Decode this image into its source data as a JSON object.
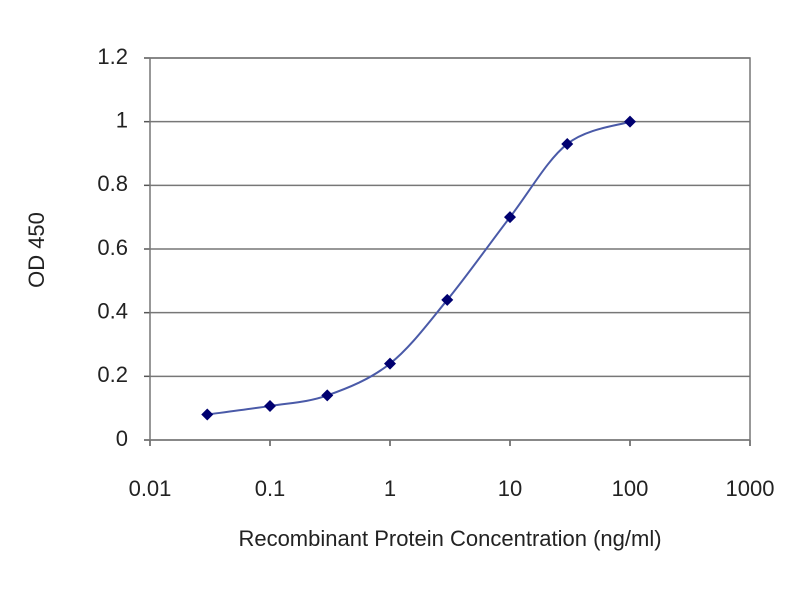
{
  "chart_data": {
    "type": "line",
    "x_label": "Recombinant Protein Concentration (ng/ml)",
    "y_label": "OD 450",
    "x": [
      0.03,
      0.1,
      0.3,
      1,
      3,
      10,
      30,
      100
    ],
    "values": [
      0.08,
      0.107,
      0.14,
      0.24,
      0.44,
      0.7,
      0.93,
      1.0
    ],
    "color": "#4a5aa8",
    "marker_color": "#000070",
    "xscale": "log",
    "xlim": [
      0.01,
      1000
    ],
    "xticks": [
      0.01,
      0.1,
      1,
      10,
      100,
      1000
    ],
    "ylim": [
      0,
      1.2
    ],
    "yticks": [
      0,
      0.2,
      0.4,
      0.6,
      0.8,
      1,
      1.2
    ],
    "grid": true
  }
}
